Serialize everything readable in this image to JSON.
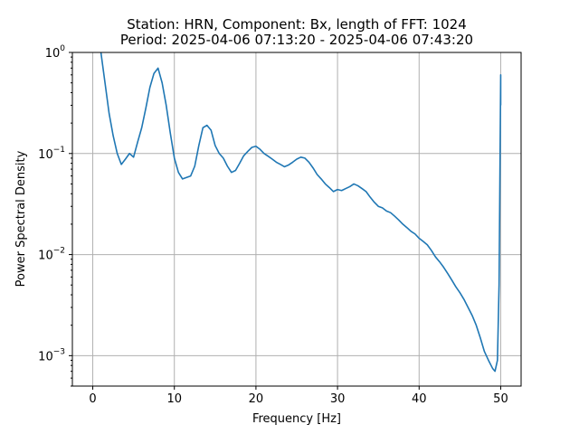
{
  "chart_data": {
    "type": "line",
    "title_line1": "Station: HRN, Component: Bx, length of FFT: 1024",
    "title_line2": "Period: 2025-04-06 07:13:20 - 2025-04-06 07:43:20",
    "xlabel": "Frequency [Hz]",
    "ylabel": "Power Spectral Density",
    "xlim": [
      -2.5,
      52.5
    ],
    "ylim": [
      0.0005,
      1
    ],
    "yscale": "log",
    "grid": true,
    "xticks": [
      0,
      10,
      20,
      30,
      40,
      50
    ],
    "xtick_labels": [
      "0",
      "10",
      "20",
      "30",
      "40",
      "50"
    ],
    "yticks": [
      0.001,
      0.01,
      0.1,
      1
    ],
    "ytick_base": "10",
    "ytick_exponents": [
      "−3",
      "−2",
      "−1",
      "0"
    ],
    "series": [
      {
        "color": "#1f77b4",
        "x": [
          1.0,
          1.5,
          2.0,
          2.5,
          3.0,
          3.5,
          4.0,
          4.5,
          5.0,
          5.5,
          6.0,
          6.5,
          7.0,
          7.5,
          8.0,
          8.5,
          9.0,
          9.5,
          10.0,
          10.5,
          11.0,
          11.5,
          12.0,
          12.5,
          13.0,
          13.5,
          14.0,
          14.5,
          15.0,
          15.5,
          16.0,
          16.5,
          17.0,
          17.5,
          18.0,
          18.5,
          19.0,
          19.5,
          20.0,
          20.5,
          21.0,
          21.5,
          22.0,
          22.5,
          23.0,
          23.5,
          24.0,
          24.5,
          25.0,
          25.5,
          26.0,
          26.5,
          27.0,
          27.5,
          28.0,
          28.5,
          29.0,
          29.5,
          30.0,
          30.5,
          31.0,
          31.5,
          32.0,
          32.5,
          33.0,
          33.5,
          34.0,
          34.5,
          35.0,
          35.5,
          36.0,
          36.5,
          37.0,
          37.5,
          38.0,
          38.5,
          39.0,
          39.5,
          40.0,
          40.5,
          41.0,
          41.5,
          42.0,
          42.5,
          43.0,
          43.5,
          44.0,
          44.5,
          45.0,
          45.5,
          46.0,
          46.5,
          47.0,
          47.5,
          48.0,
          48.5,
          49.0,
          49.3,
          49.6,
          49.8,
          50.0,
          50.0
        ],
        "y": [
          1.0,
          0.5,
          0.25,
          0.15,
          0.1,
          0.078,
          0.088,
          0.1,
          0.092,
          0.13,
          0.18,
          0.28,
          0.45,
          0.62,
          0.7,
          0.5,
          0.3,
          0.16,
          0.09,
          0.065,
          0.056,
          0.058,
          0.06,
          0.075,
          0.12,
          0.18,
          0.19,
          0.17,
          0.12,
          0.1,
          0.09,
          0.075,
          0.065,
          0.068,
          0.08,
          0.095,
          0.105,
          0.115,
          0.118,
          0.11,
          0.1,
          0.094,
          0.088,
          0.082,
          0.078,
          0.074,
          0.077,
          0.082,
          0.088,
          0.092,
          0.09,
          0.082,
          0.072,
          0.062,
          0.056,
          0.05,
          0.046,
          0.042,
          0.044,
          0.043,
          0.045,
          0.047,
          0.05,
          0.048,
          0.045,
          0.042,
          0.037,
          0.033,
          0.03,
          0.029,
          0.027,
          0.026,
          0.024,
          0.022,
          0.02,
          0.0185,
          0.017,
          0.016,
          0.0145,
          0.0135,
          0.0125,
          0.011,
          0.0095,
          0.0085,
          0.0075,
          0.0065,
          0.0056,
          0.0048,
          0.0042,
          0.0036,
          0.003,
          0.0025,
          0.002,
          0.0015,
          0.0011,
          0.0009,
          0.00075,
          0.0007,
          0.0009,
          0.005,
          0.6,
          0.3
        ]
      }
    ]
  }
}
